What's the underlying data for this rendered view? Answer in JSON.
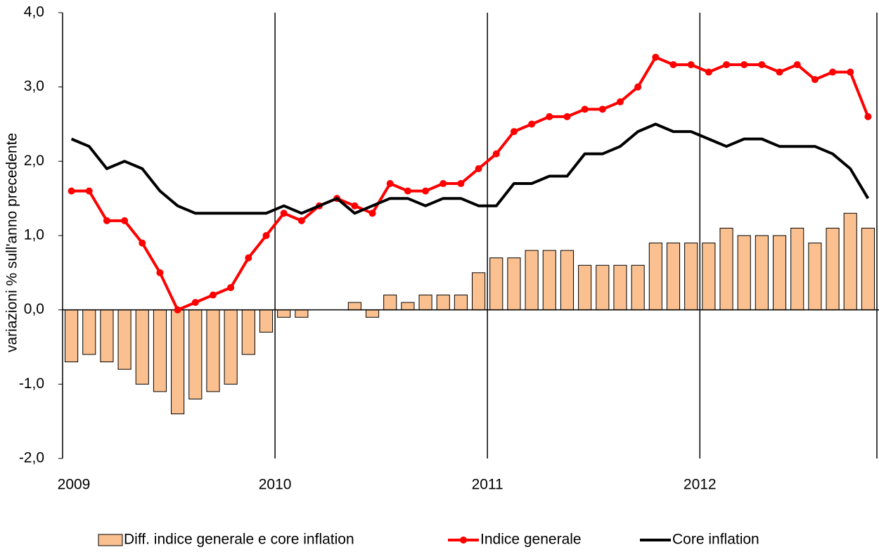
{
  "chart_data": {
    "type": "bar-line",
    "y_label": "variazioni % sull'anno precedente",
    "categories": [
      "2009",
      null,
      null,
      null,
      null,
      null,
      null,
      null,
      null,
      null,
      null,
      null,
      "2010",
      null,
      null,
      null,
      null,
      null,
      null,
      null,
      null,
      null,
      null,
      null,
      "2011",
      null,
      null,
      null,
      null,
      null,
      null,
      null,
      null,
      null,
      null,
      null,
      "2012",
      null,
      null,
      null,
      null,
      null,
      null,
      null,
      null,
      null
    ],
    "series": [
      {
        "name": "Diff. indice generale e core inflation",
        "kind": "bar",
        "color": "#fac090",
        "values": [
          -0.7,
          -0.6,
          -0.7,
          -0.8,
          -1.0,
          -1.1,
          -1.4,
          -1.2,
          -1.1,
          -1.0,
          -0.6,
          -0.3,
          -0.1,
          -0.1,
          0,
          0,
          0.1,
          -0.1,
          0.2,
          0.1,
          0.2,
          0.2,
          0.2,
          0.5,
          0.7,
          0.7,
          0.8,
          0.8,
          0.8,
          0.6,
          0.6,
          0.6,
          0.6,
          0.9,
          0.9,
          0.9,
          0.9,
          1.1,
          1.0,
          1.0,
          1.0,
          1.1,
          0.9,
          1.1,
          1.3,
          1.1
        ]
      },
      {
        "name": "Indice generale",
        "kind": "line",
        "markers": true,
        "color": "#ff0000",
        "values": [
          1.6,
          1.6,
          1.2,
          1.2,
          0.9,
          0.5,
          0.0,
          0.1,
          0.2,
          0.3,
          0.7,
          1.0,
          1.3,
          1.2,
          1.4,
          1.5,
          1.4,
          1.3,
          1.7,
          1.6,
          1.6,
          1.7,
          1.7,
          1.9,
          2.1,
          2.4,
          2.5,
          2.6,
          2.6,
          2.7,
          2.7,
          2.8,
          3.0,
          3.4,
          3.3,
          3.3,
          3.2,
          3.3,
          3.3,
          3.3,
          3.2,
          3.3,
          3.1,
          3.2,
          3.2,
          2.6
        ]
      },
      {
        "name": "Core inflation",
        "kind": "line",
        "markers": false,
        "color": "#000000",
        "values": [
          2.3,
          2.2,
          1.9,
          2.0,
          1.9,
          1.6,
          1.4,
          1.3,
          1.3,
          1.3,
          1.3,
          1.3,
          1.4,
          1.3,
          1.4,
          1.5,
          1.3,
          1.4,
          1.5,
          1.5,
          1.4,
          1.5,
          1.5,
          1.4,
          1.4,
          1.7,
          1.7,
          1.8,
          1.8,
          2.1,
          2.1,
          2.2,
          2.4,
          2.5,
          2.4,
          2.4,
          2.3,
          2.2,
          2.3,
          2.3,
          2.2,
          2.2,
          2.2,
          2.1,
          1.9,
          1.5
        ]
      }
    ],
    "ylim": [
      -2,
      4
    ],
    "yticks": [
      {
        "value": -2,
        "label": "-2,0"
      },
      {
        "value": -1,
        "label": "-1,0"
      },
      {
        "value": 0,
        "label": "0,0"
      },
      {
        "value": 1,
        "label": "1,0"
      },
      {
        "value": 2,
        "label": "2,0"
      },
      {
        "value": 3,
        "label": "3,0"
      },
      {
        "value": 4,
        "label": "4,0"
      }
    ],
    "xgrid": true,
    "legend": "bottom"
  }
}
